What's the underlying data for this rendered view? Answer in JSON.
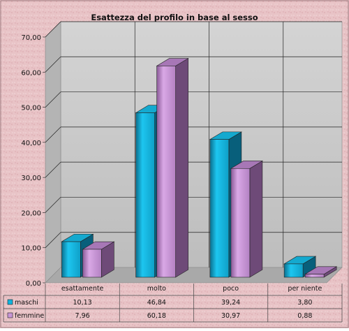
{
  "chart_data": {
    "type": "bar",
    "title": "Esattezza del profilo in base al sesso",
    "categories": [
      "esattamente",
      "molto",
      "poco",
      "per niente"
    ],
    "series": [
      {
        "name": "maschi",
        "values": [
          10.13,
          46.84,
          39.24,
          3.8
        ]
      },
      {
        "name": "femmine",
        "values": [
          7.96,
          60.18,
          30.97,
          0.88
        ]
      }
    ],
    "table_values": [
      [
        "10,13",
        "46,84",
        "39,24",
        "3,80"
      ],
      [
        "7,96",
        "60,18",
        "30,97",
        "0,88"
      ]
    ],
    "y_ticks": [
      "0,00",
      "10,00",
      "20,00",
      "30,00",
      "40,00",
      "50,00",
      "60,00",
      "70,00"
    ],
    "ylim": [
      0,
      70
    ],
    "grid": true,
    "legend": "data-table-left",
    "colors": {
      "maschi": "#10b4de",
      "femmine": "#c896d6",
      "background": "#e8c3c6",
      "wall": "#c6c6c6",
      "floor": "#a9a9a9"
    }
  }
}
